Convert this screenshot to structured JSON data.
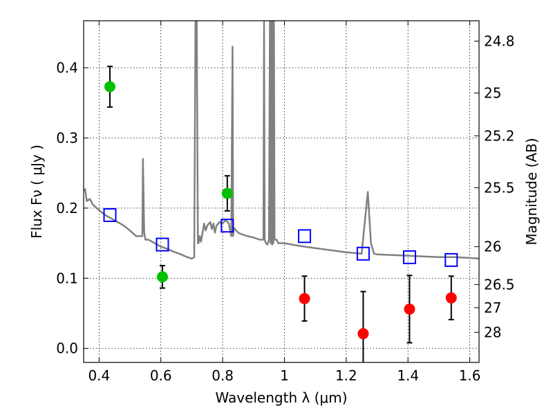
{
  "chart_data": {
    "type": "scatter",
    "xlabel": "Wavelength  λ (μm)",
    "ylabel": "Flux  Fν  ( μJy )",
    "y2label": "Magnitude (AB)",
    "xlim": [
      0.35,
      1.63
    ],
    "ylim": [
      -0.02,
      0.467
    ],
    "grid": true,
    "x_ticks": [
      0.4,
      0.6,
      0.8,
      1.0,
      1.2,
      1.4,
      1.6
    ],
    "x_tick_labels": [
      "0.4",
      "0.6",
      "0.8",
      "1",
      "1.2",
      "1.4",
      "1.6"
    ],
    "y_ticks": [
      0.0,
      0.1,
      0.2,
      0.3,
      0.4
    ],
    "y_tick_labels": [
      "0.0",
      "0.1",
      "0.2",
      "0.3",
      "0.4"
    ],
    "y2_ticks": [
      {
        "mag": "24.8",
        "flux": 0.438
      },
      {
        "mag": "25",
        "flux": 0.364
      },
      {
        "mag": "25.2",
        "flux": 0.303
      },
      {
        "mag": "25.5",
        "flux": 0.229
      },
      {
        "mag": "26",
        "flux": 0.145
      },
      {
        "mag": "26.5",
        "flux": 0.091
      },
      {
        "mag": "27",
        "flux": 0.058
      },
      {
        "mag": "28",
        "flux": 0.023
      }
    ],
    "series": [
      {
        "type": "line",
        "color": "#808080",
        "x": [
          0.35,
          0.355,
          0.36,
          0.37,
          0.38,
          0.4,
          0.42,
          0.44,
          0.46,
          0.48,
          0.5,
          0.52,
          0.54,
          0.542,
          0.546,
          0.55,
          0.56,
          0.58,
          0.6,
          0.62,
          0.64,
          0.66,
          0.68,
          0.7,
          0.708,
          0.712,
          0.716,
          0.72,
          0.722,
          0.726,
          0.73,
          0.74,
          0.745,
          0.75,
          0.76,
          0.765,
          0.77,
          0.775,
          0.78,
          0.79,
          0.8,
          0.81,
          0.82,
          0.828,
          0.832,
          0.834,
          0.836,
          0.84,
          0.85,
          0.86,
          0.88,
          0.9,
          0.92,
          0.932,
          0.934,
          0.936,
          0.94,
          0.945,
          0.95,
          0.953,
          0.955,
          0.957,
          0.96,
          0.962,
          0.964,
          0.966,
          0.968,
          0.97,
          0.975,
          0.98,
          1.0,
          1.05,
          1.1,
          1.15,
          1.2,
          1.25,
          1.26,
          1.27,
          1.28,
          1.29,
          1.3,
          1.35,
          1.4,
          1.45,
          1.5,
          1.55,
          1.6,
          1.63
        ],
        "y": [
          0.225,
          0.227,
          0.21,
          0.213,
          0.205,
          0.197,
          0.19,
          0.185,
          0.18,
          0.175,
          0.168,
          0.16,
          0.16,
          0.27,
          0.165,
          0.155,
          0.155,
          0.15,
          0.145,
          0.142,
          0.138,
          0.135,
          0.131,
          0.128,
          0.13,
          0.47,
          0.47,
          0.15,
          0.15,
          0.16,
          0.152,
          0.178,
          0.168,
          0.175,
          0.18,
          0.17,
          0.178,
          0.165,
          0.175,
          0.18,
          0.178,
          0.183,
          0.178,
          0.16,
          0.43,
          0.16,
          0.172,
          0.17,
          0.165,
          0.163,
          0.16,
          0.158,
          0.155,
          0.155,
          0.47,
          0.155,
          0.15,
          0.148,
          0.155,
          0.47,
          0.15,
          0.47,
          0.148,
          0.47,
          0.15,
          0.47,
          0.155,
          0.155,
          0.155,
          0.15,
          0.15,
          0.146,
          0.143,
          0.14,
          0.137,
          0.135,
          0.18,
          0.223,
          0.15,
          0.135,
          0.134,
          0.133,
          0.132,
          0.131,
          0.13,
          0.13,
          0.129,
          0.128
        ]
      },
      {
        "type": "scatter",
        "marker": "square-open",
        "color": "#0000ff",
        "x": [
          0.435,
          0.605,
          0.815,
          1.065,
          1.255,
          1.405,
          1.54
        ],
        "y": [
          0.19,
          0.148,
          0.175,
          0.16,
          0.135,
          0.13,
          0.126
        ]
      },
      {
        "type": "scatter",
        "marker": "circle",
        "color": "#00c000",
        "x": [
          0.435,
          0.605,
          0.815
        ],
        "y": [
          0.373,
          0.102,
          0.221
        ],
        "yerr": [
          0.029,
          0.016,
          0.025
        ]
      },
      {
        "type": "scatter",
        "marker": "circle",
        "color": "#ff0000",
        "x": [
          1.065,
          1.255,
          1.405,
          1.54
        ],
        "y": [
          0.071,
          0.021,
          0.056,
          0.072
        ],
        "yerr": [
          0.032,
          0.06,
          0.048,
          0.031
        ]
      }
    ]
  }
}
